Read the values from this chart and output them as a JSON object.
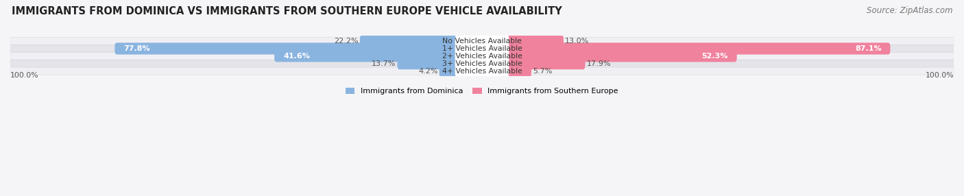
{
  "title": "IMMIGRANTS FROM DOMINICA VS IMMIGRANTS FROM SOUTHERN EUROPE VEHICLE AVAILABILITY",
  "source": "Source: ZipAtlas.com",
  "categories": [
    "No Vehicles Available",
    "1+ Vehicles Available",
    "2+ Vehicles Available",
    "3+ Vehicles Available",
    "4+ Vehicles Available"
  ],
  "dominica_values": [
    22.2,
    77.8,
    41.6,
    13.7,
    4.2
  ],
  "southern_europe_values": [
    13.0,
    87.1,
    52.3,
    17.9,
    5.7
  ],
  "dominica_color": "#8ab4e0",
  "southern_europe_color": "#f0829e",
  "row_bg_light": "#f0f0f4",
  "row_bg_dark": "#e4e4ea",
  "label_bg_color": "#ffffff",
  "max_value": 100.0,
  "legend_label_dominica": "Immigrants from Dominica",
  "legend_label_southern": "Immigrants from Southern Europe",
  "title_fontsize": 10.5,
  "source_fontsize": 8.5,
  "value_fontsize": 8.0,
  "cat_fontsize": 7.8,
  "bar_height": 0.58,
  "figsize": [
    14.06,
    2.86
  ],
  "dpi": 100
}
